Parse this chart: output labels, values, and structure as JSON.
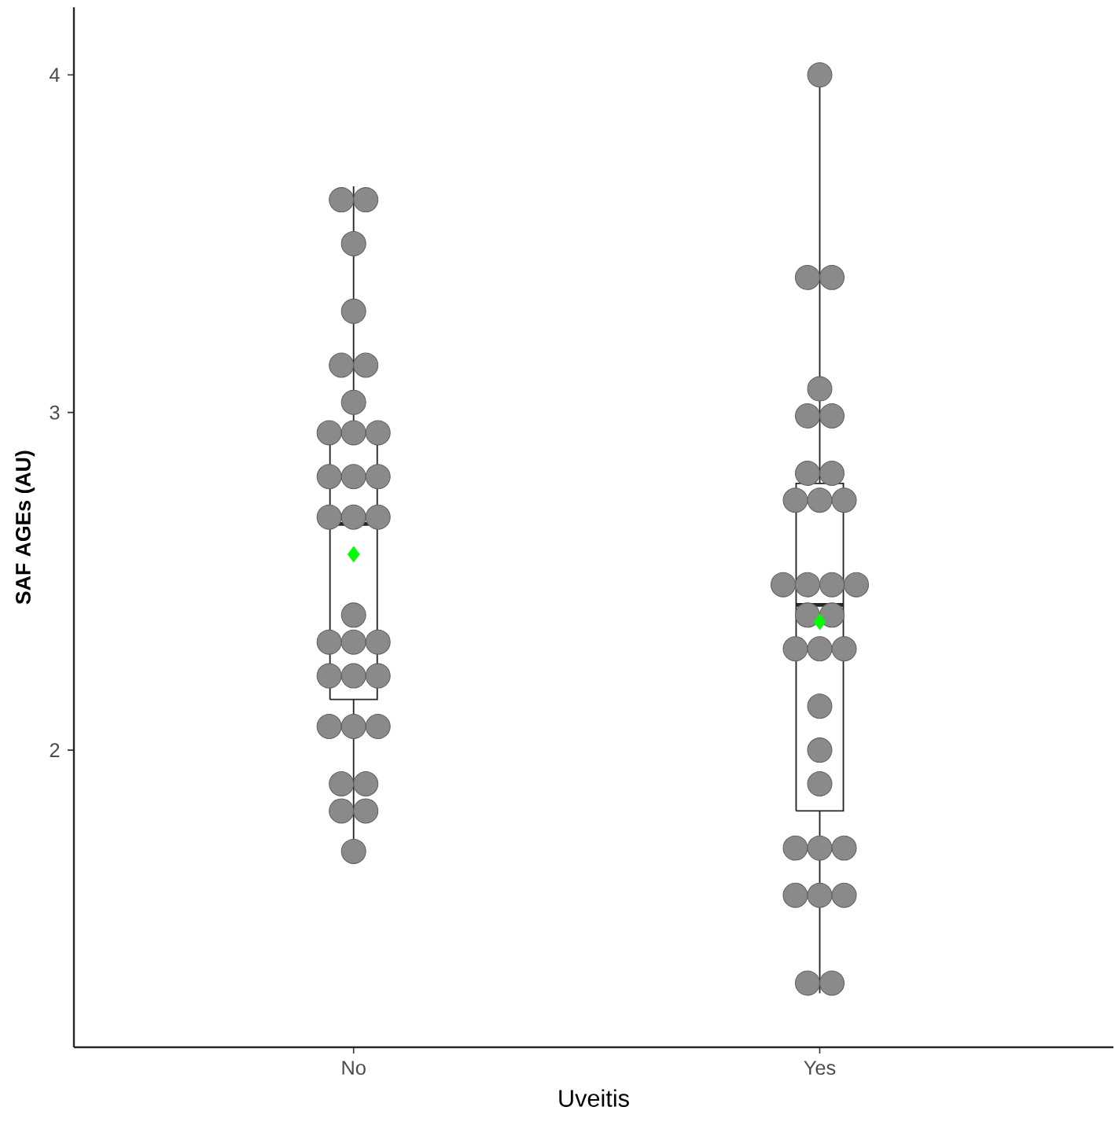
{
  "chart_data": {
    "type": "box",
    "xlabel": "Uveitis",
    "ylabel": "SAF AGEs (AU)",
    "categories": [
      "No",
      "Yes"
    ],
    "ylim": [
      1.12,
      4.2
    ],
    "yticks": [
      2,
      3,
      4
    ],
    "grid": false,
    "boxes": [
      {
        "low": 1.7,
        "q1": 2.15,
        "median": 2.67,
        "q3": 2.94,
        "high": 3.67,
        "mean": 2.58
      },
      {
        "low": 1.28,
        "q1": 1.82,
        "median": 2.43,
        "q3": 2.79,
        "high": 4.0,
        "mean": 2.38
      }
    ],
    "series": [
      {
        "type": "scatter",
        "color": "#8a8a8a",
        "marker": "circle",
        "x": [
          "No",
          "No",
          "No",
          "No",
          "No",
          "No",
          "No",
          "No",
          "No",
          "No",
          "No",
          "No",
          "No",
          "No",
          "No",
          "No",
          "No",
          "No",
          "No",
          "No",
          "No",
          "No",
          "No",
          "No",
          "No",
          "No",
          "No",
          "No",
          "No",
          "No",
          "No",
          "Yes",
          "Yes",
          "Yes",
          "Yes",
          "Yes",
          "Yes",
          "Yes",
          "Yes",
          "Yes",
          "Yes",
          "Yes",
          "Yes",
          "Yes",
          "Yes",
          "Yes",
          "Yes",
          "Yes",
          "Yes",
          "Yes",
          "Yes",
          "Yes",
          "Yes",
          "Yes",
          "Yes",
          "Yes",
          "Yes",
          "Yes",
          "Yes",
          "Yes",
          "Yes",
          "Yes"
        ],
        "values": [
          3.63,
          3.63,
          3.5,
          3.3,
          3.14,
          3.14,
          3.03,
          2.94,
          2.94,
          2.94,
          2.81,
          2.81,
          2.81,
          2.69,
          2.69,
          2.69,
          2.4,
          2.32,
          2.32,
          2.32,
          2.22,
          2.22,
          2.22,
          2.07,
          2.07,
          2.07,
          1.9,
          1.9,
          1.82,
          1.82,
          1.7,
          4.0,
          3.4,
          3.4,
          3.07,
          2.99,
          2.99,
          2.82,
          2.82,
          2.74,
          2.74,
          2.74,
          2.49,
          2.49,
          2.49,
          2.49,
          2.4,
          2.4,
          2.3,
          2.3,
          2.3,
          2.13,
          2.0,
          1.9,
          1.71,
          1.71,
          1.71,
          1.57,
          1.57,
          1.57,
          1.31,
          1.31
        ]
      }
    ]
  }
}
